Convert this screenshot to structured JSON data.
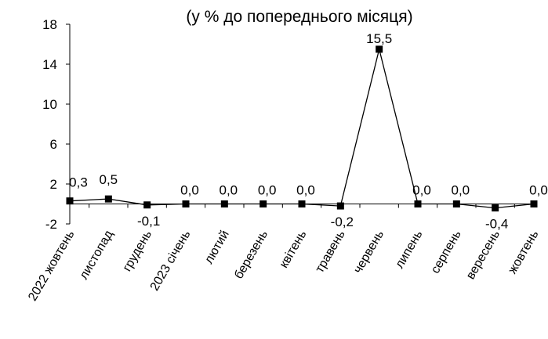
{
  "chart_data": {
    "type": "line",
    "title": "(у % до попереднього місяця)",
    "xlabel": "",
    "ylabel": "",
    "categories": [
      "2022 жовтень",
      "листопад",
      "грудень",
      "2023 січень",
      "лютий",
      "березень",
      "квітень",
      "травень",
      "червень",
      "липень",
      "серпень",
      "вересень",
      "жовтень"
    ],
    "values": [
      0.3,
      0.5,
      -0.1,
      0.0,
      0.0,
      0.0,
      0.0,
      -0.2,
      15.5,
      0.0,
      0.0,
      -0.4,
      0.0
    ],
    "data_labels": [
      "0,3",
      "0,5",
      "-0,1",
      "0,0",
      "0,0",
      "0,0",
      "0,0",
      "-0,2",
      "15,5",
      "0,0",
      "0,0",
      "-0,4",
      "0,0"
    ],
    "ylim": [
      -2,
      18
    ],
    "yticks": [
      -2,
      2,
      6,
      10,
      14,
      18
    ],
    "grid": false,
    "legend": "none",
    "line_color": "#000000",
    "marker": "square"
  }
}
